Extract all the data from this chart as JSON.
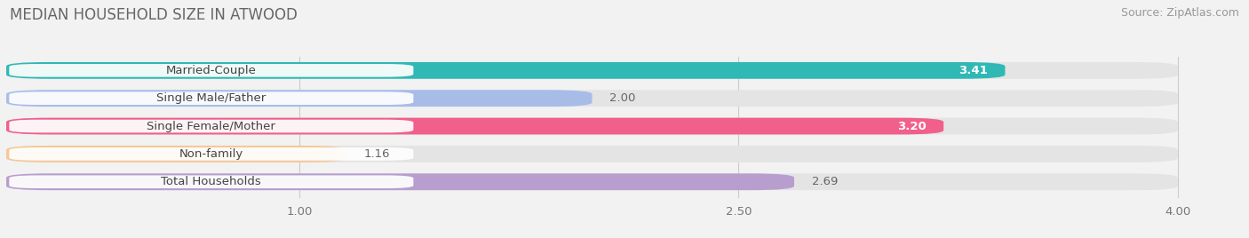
{
  "title": "MEDIAN HOUSEHOLD SIZE IN ATWOOD",
  "source": "Source: ZipAtlas.com",
  "categories": [
    "Married-Couple",
    "Single Male/Father",
    "Single Female/Mother",
    "Non-family",
    "Total Households"
  ],
  "values": [
    3.41,
    2.0,
    3.2,
    1.16,
    2.69
  ],
  "bar_colors": [
    "#30b8b5",
    "#a8bce8",
    "#f0608a",
    "#f5c898",
    "#b89ece"
  ],
  "value_inside": [
    true,
    false,
    true,
    false,
    false
  ],
  "background_color": "#f2f2f2",
  "bar_bg_color": "#e4e4e4",
  "xlim_data": [
    0.0,
    4.2
  ],
  "xmin": 0.0,
  "xmax": 4.0,
  "xticks": [
    1.0,
    2.5,
    4.0
  ],
  "title_fontsize": 12,
  "source_fontsize": 9,
  "label_fontsize": 9.5,
  "value_fontsize": 9.5
}
